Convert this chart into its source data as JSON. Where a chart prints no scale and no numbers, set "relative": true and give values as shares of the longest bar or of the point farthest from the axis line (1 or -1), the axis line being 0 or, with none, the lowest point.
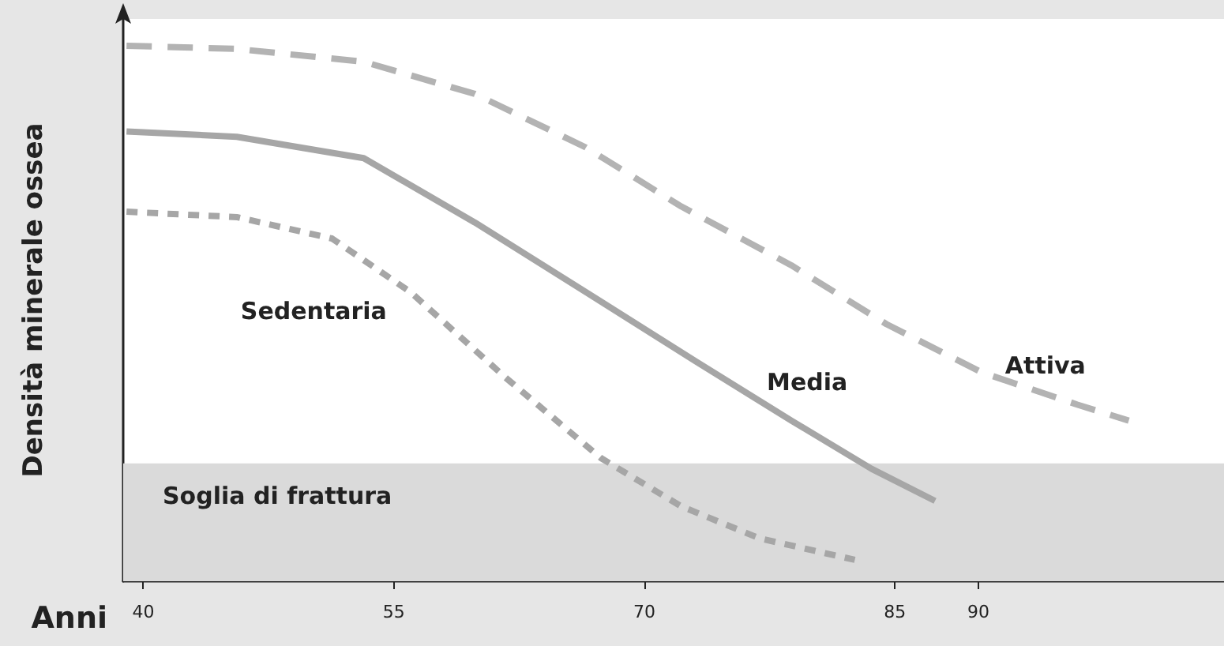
{
  "chart_data": {
    "type": "line",
    "relative": true,
    "xlabel": "Anni",
    "ylabel": "Densità minerale ossea",
    "xlim": [
      38.8,
      104.7
    ],
    "xticks": [
      40,
      55,
      70,
      85,
      90
    ],
    "tick_labels": "x",
    "grid": false,
    "legend": false,
    "marker": "none",
    "series": [
      {
        "name": "Attiva",
        "color": "#b3b3b3",
        "line_style": "dashed",
        "x": [
          39,
          45.6,
          53.2,
          59.85,
          66.5,
          72.2,
          78.8,
          84.5,
          90.2,
          95.9,
          99
        ],
        "values": [
          1,
          0.994,
          0.97,
          0.91,
          0.81,
          0.7,
          0.59,
          0.48,
          0.39,
          0.33,
          0.3
        ]
      },
      {
        "name": "Media",
        "color": "#a6a6a6",
        "line_style": "solid",
        "x": [
          39,
          45.6,
          53.2,
          59.85,
          66.5,
          73.1,
          78.8,
          83.6,
          87.4
        ],
        "values": [
          0.84,
          0.83,
          0.79,
          0.67,
          0.54,
          0.41,
          0.3,
          0.21,
          0.15
        ]
      },
      {
        "name": "Sedentaria",
        "color": "#a6a6a6",
        "line_style": "dotted",
        "x": [
          39,
          45.6,
          51.3,
          56,
          61.7,
          67.4,
          72.2,
          76.9,
          82.6
        ],
        "values": [
          0.69,
          0.68,
          0.64,
          0.54,
          0.38,
          0.23,
          0.14,
          0.08,
          0.04
        ]
      }
    ],
    "bands": [
      {
        "axis": "y",
        "from": 0,
        "to": 0.22,
        "label": "Soglia di frattura",
        "color": "#dadada"
      }
    ]
  }
}
